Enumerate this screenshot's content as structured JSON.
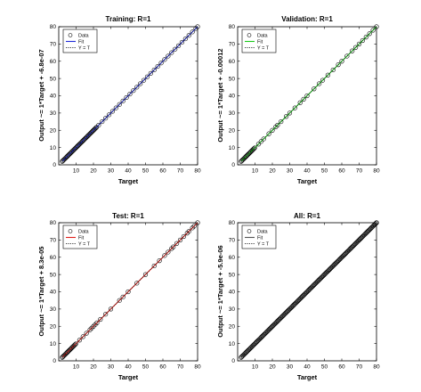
{
  "figure": {
    "background": "#ffffff"
  },
  "chart_data": [
    {
      "type": "scatter",
      "title": "Training: R=1",
      "xlabel": "Target",
      "ylabel": "Output ~= 1*Target + -6.8e-07",
      "xlim": [
        0,
        80
      ],
      "ylim": [
        0,
        80
      ],
      "xticks": [
        "10",
        "20",
        "30",
        "40",
        "50",
        "60",
        "70",
        "80"
      ],
      "yticks": [
        "0",
        "10",
        "20",
        "30",
        "40",
        "50",
        "60",
        "70",
        "80"
      ],
      "grid": false,
      "legend": {
        "placement": "top-left",
        "entries": [
          "Data",
          "Fit",
          "Y = T"
        ]
      },
      "fit_color": "#1f2bd8",
      "fit": {
        "slope": 1,
        "intercept": -6.8e-07
      },
      "x_range_data": [
        2,
        80
      ],
      "dense_range": [
        2,
        22
      ],
      "data_x": [
        23,
        25,
        27,
        29,
        31,
        33,
        35,
        37,
        39,
        41,
        43,
        45,
        47,
        49,
        51,
        53,
        55,
        57,
        59,
        61,
        63,
        65,
        67,
        69,
        71,
        73,
        75,
        77,
        79,
        80
      ]
    },
    {
      "type": "scatter",
      "title": "Validation: R=1",
      "xlabel": "Target",
      "ylabel": "Output ~= 1*Target + -0.00012",
      "xlim": [
        0,
        80
      ],
      "ylim": [
        0,
        80
      ],
      "xticks": [
        "10",
        "20",
        "30",
        "40",
        "50",
        "60",
        "70",
        "80"
      ],
      "yticks": [
        "0",
        "10",
        "20",
        "30",
        "40",
        "50",
        "60",
        "70",
        "80"
      ],
      "grid": false,
      "legend": {
        "placement": "top-left",
        "entries": [
          "Data",
          "Fit",
          "Y = T"
        ]
      },
      "fit_color": "#19c919",
      "fit": {
        "slope": 1,
        "intercept": -0.00012
      },
      "x_range_data": [
        2,
        80
      ],
      "dense_range": [
        2,
        10
      ],
      "data_x": [
        12,
        13.5,
        15,
        18,
        20,
        22,
        23,
        25,
        28,
        30,
        33,
        36,
        38,
        40,
        44,
        47,
        49,
        52,
        55,
        58,
        60,
        63,
        66,
        68,
        70,
        72,
        74,
        76,
        78,
        80
      ]
    },
    {
      "type": "scatter",
      "title": "Test: R=1",
      "xlabel": "Target",
      "ylabel": "Output ~= 1*Target + 8.3e-05",
      "xlim": [
        0,
        80
      ],
      "ylim": [
        0,
        80
      ],
      "xticks": [
        "10",
        "20",
        "30",
        "40",
        "50",
        "60",
        "70",
        "80"
      ],
      "yticks": [
        "0",
        "10",
        "20",
        "30",
        "40",
        "50",
        "60",
        "70",
        "80"
      ],
      "grid": false,
      "legend": {
        "placement": "top-left",
        "entries": [
          "Data",
          "Fit",
          "Y = T"
        ]
      },
      "fit_color": "#e0201a",
      "fit": {
        "slope": 1,
        "intercept": 8.3e-05
      },
      "x_range_data": [
        2,
        80
      ],
      "dense_range": [
        2,
        10
      ],
      "data_x": [
        12,
        14,
        16,
        18,
        19,
        20,
        21,
        22,
        24,
        27,
        30,
        35,
        37,
        40,
        45,
        50,
        55,
        58,
        61,
        63,
        65,
        66,
        68,
        70,
        72,
        74,
        75,
        77,
        78,
        80
      ]
    },
    {
      "type": "scatter",
      "title": "All: R=1",
      "xlabel": "Target",
      "ylabel": "Output ~= 1*Target + -5.9e-06",
      "xlim": [
        0,
        80
      ],
      "ylim": [
        0,
        80
      ],
      "xticks": [
        "10",
        "20",
        "30",
        "40",
        "50",
        "60",
        "70",
        "80"
      ],
      "yticks": [
        "0",
        "10",
        "20",
        "30",
        "40",
        "50",
        "60",
        "70",
        "80"
      ],
      "grid": false,
      "legend": {
        "placement": "top-left",
        "entries": [
          "Data",
          "Fit",
          "Y = T"
        ]
      },
      "fit_color": "#555555",
      "fit": {
        "slope": 1,
        "intercept": -5.9e-06
      },
      "x_range_data": [
        2,
        80
      ],
      "dense_range": [
        2,
        80
      ],
      "data_x": [
        80
      ]
    }
  ]
}
